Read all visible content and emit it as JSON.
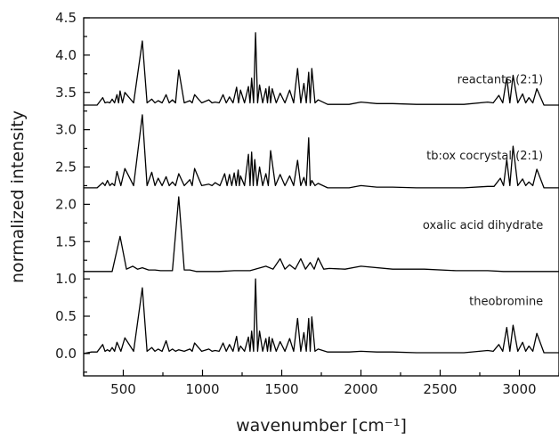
{
  "chart_data": {
    "type": "line",
    "title": "",
    "xlabel": "wavenumber [cm⁻¹]",
    "ylabel": "normalized intensity",
    "xlim": [
      250,
      3250
    ],
    "ylim": [
      -0.3,
      4.5
    ],
    "x_ticks": [
      500,
      1000,
      1500,
      2000,
      2500,
      3000
    ],
    "x_tick_labels": [
      "500",
      "1000",
      "1500",
      "2000",
      "2500",
      "3000"
    ],
    "y_ticks": [
      0.0,
      0.5,
      1.0,
      1.5,
      2.0,
      2.5,
      3.0,
      3.5,
      4.0,
      4.5
    ],
    "y_tick_labels": [
      "0.0",
      "0.5",
      "1.0",
      "1.5",
      "2.0",
      "2.5",
      "3.0",
      "3.5",
      "4.0",
      "4.5"
    ],
    "grid": false,
    "legend": "none",
    "line_color": "#000000",
    "series": [
      {
        "name": "reactants (2:1)",
        "baseline": 3.33,
        "x": [
          300,
          370,
          400,
          430,
          460,
          480,
          510,
          620,
          680,
          720,
          770,
          810,
          850,
          920,
          950,
          1040,
          1080,
          1130,
          1170,
          1215,
          1240,
          1290,
          1310,
          1335,
          1360,
          1400,
          1420,
          1440,
          1490,
          1550,
          1600,
          1640,
          1670,
          1690,
          1730,
          1850,
          2000,
          2200,
          2500,
          2800,
          2870,
          2920,
          2960,
          3020,
          3060,
          3110,
          3200
        ],
        "y": [
          3.33,
          3.43,
          3.37,
          3.41,
          3.47,
          3.52,
          3.5,
          4.19,
          3.41,
          3.39,
          3.47,
          3.4,
          3.8,
          3.39,
          3.47,
          3.4,
          3.37,
          3.47,
          3.44,
          3.57,
          3.53,
          3.58,
          3.69,
          4.3,
          3.6,
          3.55,
          3.58,
          3.55,
          3.49,
          3.53,
          3.82,
          3.62,
          3.77,
          3.82,
          3.4,
          3.34,
          3.37,
          3.35,
          3.34,
          3.37,
          3.46,
          3.7,
          3.73,
          3.48,
          3.43,
          3.55,
          3.33
        ]
      },
      {
        "name": "tb:ox cocrystal (2:1)",
        "baseline": 2.22,
        "x": [
          300,
          370,
          400,
          430,
          460,
          510,
          620,
          680,
          720,
          770,
          810,
          850,
          920,
          950,
          1040,
          1080,
          1140,
          1170,
          1200,
          1225,
          1240,
          1290,
          1310,
          1330,
          1360,
          1400,
          1430,
          1490,
          1550,
          1600,
          1640,
          1670,
          1690,
          1730,
          1850,
          2000,
          2200,
          2500,
          2800,
          2880,
          2920,
          2960,
          3020,
          3060,
          3110,
          3200
        ],
        "y": [
          2.22,
          2.29,
          2.32,
          2.28,
          2.44,
          2.48,
          3.2,
          2.43,
          2.35,
          2.37,
          2.3,
          2.41,
          2.33,
          2.48,
          2.27,
          2.29,
          2.41,
          2.4,
          2.42,
          2.46,
          2.38,
          2.67,
          2.7,
          2.6,
          2.5,
          2.41,
          2.72,
          2.4,
          2.38,
          2.59,
          2.36,
          2.89,
          2.32,
          2.28,
          2.22,
          2.25,
          2.23,
          2.22,
          2.24,
          2.35,
          2.6,
          2.78,
          2.34,
          2.3,
          2.47,
          2.22
        ]
      },
      {
        "name": "oxalic acid dihydrate",
        "baseline": 1.1,
        "x": [
          300,
          380,
          480,
          560,
          620,
          700,
          770,
          850,
          920,
          1000,
          1200,
          1400,
          1490,
          1550,
          1620,
          1680,
          1730,
          1800,
          2000,
          2400,
          2800,
          3000,
          3200
        ],
        "y": [
          1.1,
          1.1,
          1.57,
          1.17,
          1.15,
          1.12,
          1.11,
          2.1,
          1.12,
          1.1,
          1.11,
          1.17,
          1.27,
          1.19,
          1.27,
          1.22,
          1.28,
          1.14,
          1.17,
          1.13,
          1.11,
          1.1,
          1.1
        ]
      },
      {
        "name": "theobromine",
        "baseline": 0.0,
        "x": [
          300,
          370,
          400,
          430,
          460,
          510,
          620,
          680,
          720,
          770,
          810,
          850,
          920,
          950,
          1040,
          1080,
          1130,
          1170,
          1215,
          1240,
          1290,
          1310,
          1335,
          1360,
          1400,
          1420,
          1440,
          1490,
          1550,
          1600,
          1640,
          1670,
          1690,
          1730,
          1850,
          2000,
          2200,
          2500,
          2800,
          2870,
          2920,
          2960,
          3020,
          3060,
          3110,
          3200
        ],
        "y": [
          0.02,
          0.12,
          0.05,
          0.08,
          0.15,
          0.21,
          0.88,
          0.08,
          0.06,
          0.17,
          0.06,
          0.05,
          0.06,
          0.14,
          0.06,
          0.04,
          0.14,
          0.12,
          0.23,
          0.1,
          0.22,
          0.3,
          1.0,
          0.3,
          0.2,
          0.22,
          0.2,
          0.16,
          0.2,
          0.47,
          0.28,
          0.47,
          0.49,
          0.06,
          0.02,
          0.03,
          0.02,
          0.01,
          0.04,
          0.12,
          0.35,
          0.38,
          0.15,
          0.1,
          0.27,
          0.01
        ]
      }
    ],
    "annotations": [
      {
        "text": "reactants (2:1)",
        "x": 3150,
        "y": 3.62
      },
      {
        "text": "tb:ox cocrystal (2:1)",
        "x": 3150,
        "y": 2.6
      },
      {
        "text": "oxalic acid dihydrate",
        "x": 3150,
        "y": 1.67
      },
      {
        "text": "theobromine",
        "x": 3150,
        "y": 0.65
      }
    ]
  }
}
